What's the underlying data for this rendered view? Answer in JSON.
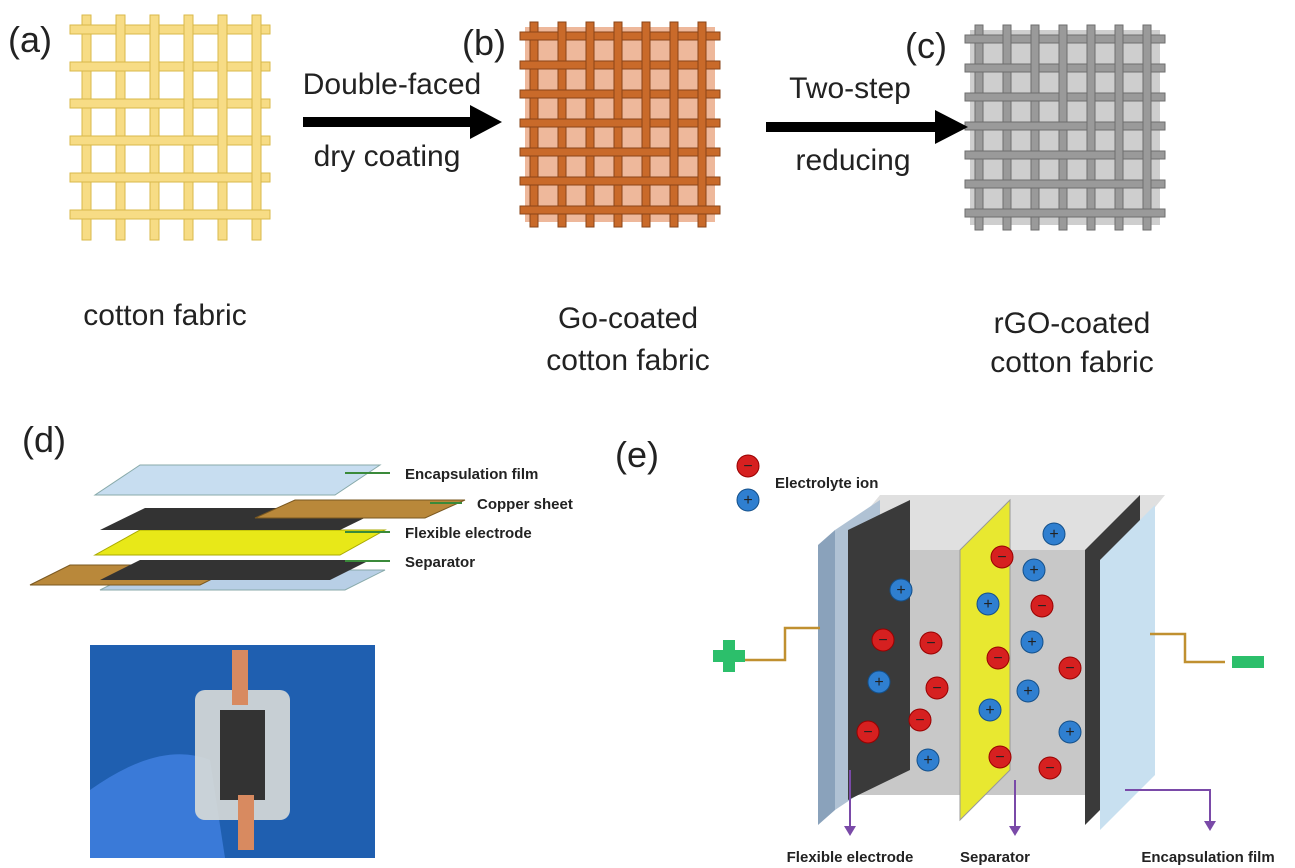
{
  "panels": [
    {
      "label": "(a)",
      "caption": [
        "cotton fabric"
      ]
    },
    {
      "label": "(b)",
      "caption": [
        "Go-coated",
        "cotton fabric"
      ]
    },
    {
      "label": "(c)",
      "caption": [
        "rGO-coated",
        "cotton fabric"
      ]
    }
  ],
  "arrows": [
    {
      "lines": [
        "Double-faced",
        "dry coating"
      ]
    },
    {
      "lines": [
        "Two-step",
        "reducing"
      ]
    }
  ],
  "device": {
    "label": "(d)",
    "layers": [
      "Encapsulation film",
      "Copper sheet",
      "Flexible electrode",
      "Separator"
    ]
  },
  "mechanism": {
    "label": "(e)",
    "legend": "Electrolyte ion",
    "parts": [
      "Flexible electrode",
      "Separator",
      "Encapsulation film"
    ]
  }
}
